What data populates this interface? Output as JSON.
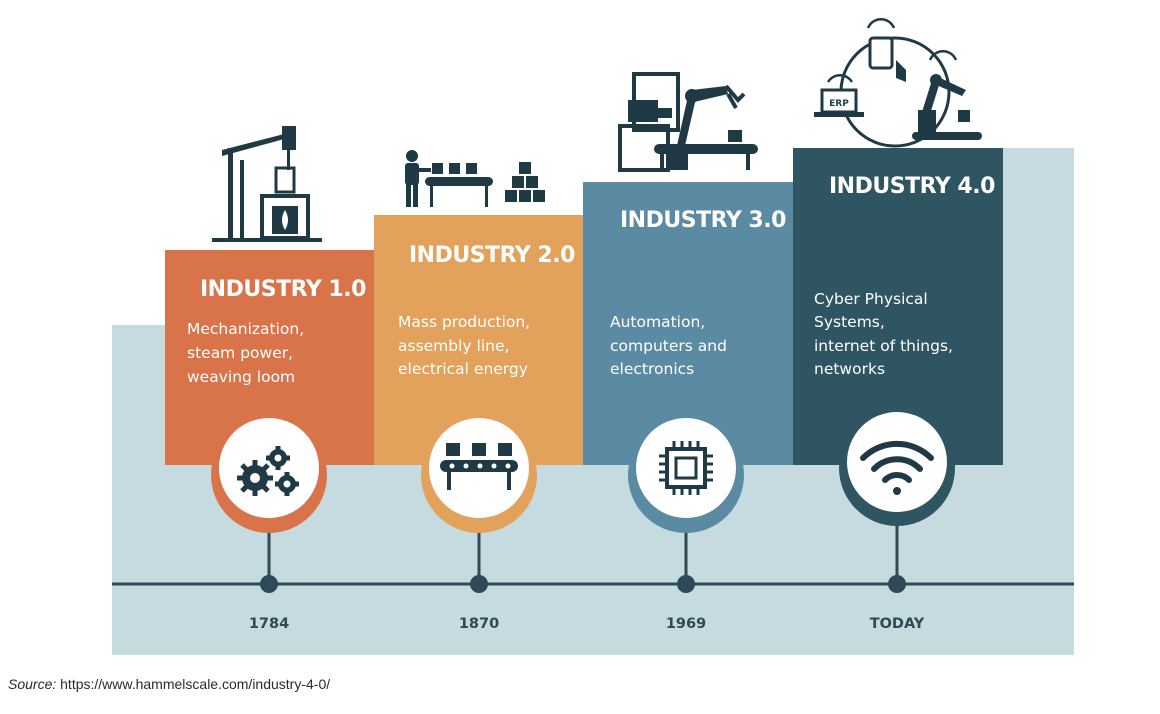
{
  "stages": [
    {
      "title": "INDUSTRY 1.0",
      "desc": [
        "Mechanization,",
        "steam power,",
        "weaving loom"
      ],
      "year": "1784",
      "icon": "gears-icon",
      "illustration": "steam-engine-illustration",
      "color": "#d9734a"
    },
    {
      "title": "INDUSTRY 2.0",
      "desc": [
        "Mass production,",
        "assembly line,",
        "electrical energy"
      ],
      "year": "1870",
      "icon": "conveyor-belt-icon",
      "illustration": "assembly-line-illustration",
      "color": "#e3a25c"
    },
    {
      "title": "INDUSTRY 3.0",
      "desc": [
        "Automation,",
        "computers and",
        "electronics"
      ],
      "year": "1969",
      "icon": "microchip-icon",
      "illustration": "robot-arm-computer-illustration",
      "color": "#5b8ba3"
    },
    {
      "title": "INDUSTRY 4.0",
      "desc": [
        "Cyber Physical",
        "Systems,",
        "internet of things,",
        "networks"
      ],
      "year": "TODAY",
      "icon": "wifi-icon",
      "illustration": "connected-factory-illustration",
      "color": "#2f5462"
    }
  ],
  "erp_label": "ERP",
  "source": {
    "label": "Source:",
    "url": "https://www.hammelscale.com/industry-4-0/"
  },
  "colors": {
    "background": "#c5dbe0",
    "timeline": "#2d4a56",
    "icon_dark": "#1f3a44"
  }
}
